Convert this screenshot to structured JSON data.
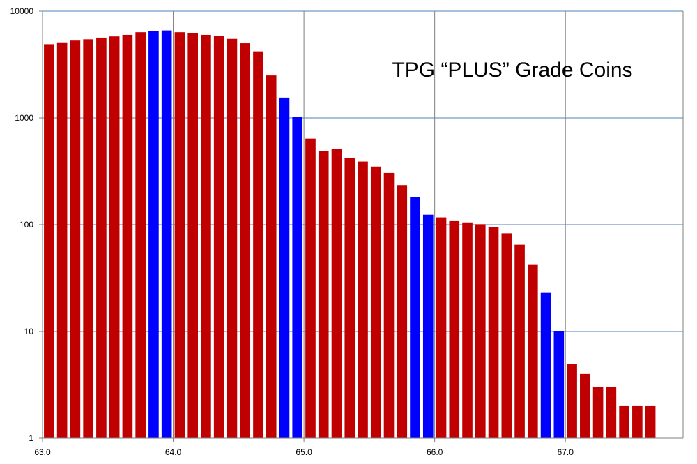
{
  "chart_data": {
    "type": "bar",
    "title": "TPG “PLUS”  Grade  Coins",
    "xlabel": "",
    "ylabel": "",
    "y_scale": "log",
    "ylim": [
      1,
      10000
    ],
    "xlim": [
      63.0,
      67.9
    ],
    "y_ticks": [
      1,
      10,
      100,
      1000,
      10000
    ],
    "y_tick_labels": [
      "1",
      "10",
      "100",
      "1000",
      "10000"
    ],
    "x_ticks": [
      63.0,
      64.0,
      65.0,
      66.0,
      67.0
    ],
    "x_tick_labels": [
      "63.0",
      "64.0",
      "65.0",
      "66.0",
      "67.0"
    ],
    "grid": true,
    "colors": {
      "regular": "#C00000",
      "highlight": "#0000FF",
      "grid": "#4F81BD",
      "axis": "#7F7F7F"
    },
    "bars": [
      {
        "x": 63.0,
        "value": 4900,
        "highlight": false
      },
      {
        "x": 63.1,
        "value": 5100,
        "highlight": false
      },
      {
        "x": 63.2,
        "value": 5300,
        "highlight": false
      },
      {
        "x": 63.3,
        "value": 5450,
        "highlight": false
      },
      {
        "x": 63.4,
        "value": 5650,
        "highlight": false
      },
      {
        "x": 63.5,
        "value": 5800,
        "highlight": false
      },
      {
        "x": 63.6,
        "value": 6000,
        "highlight": false
      },
      {
        "x": 63.7,
        "value": 6350,
        "highlight": false
      },
      {
        "x": 63.8,
        "value": 6500,
        "highlight": true
      },
      {
        "x": 63.9,
        "value": 6600,
        "highlight": true
      },
      {
        "x": 64.0,
        "value": 6350,
        "highlight": false
      },
      {
        "x": 64.1,
        "value": 6200,
        "highlight": false
      },
      {
        "x": 64.2,
        "value": 6000,
        "highlight": false
      },
      {
        "x": 64.3,
        "value": 5900,
        "highlight": false
      },
      {
        "x": 64.4,
        "value": 5500,
        "highlight": false
      },
      {
        "x": 64.5,
        "value": 5000,
        "highlight": false
      },
      {
        "x": 64.6,
        "value": 4200,
        "highlight": false
      },
      {
        "x": 64.7,
        "value": 2500,
        "highlight": false
      },
      {
        "x": 64.8,
        "value": 1550,
        "highlight": true
      },
      {
        "x": 64.9,
        "value": 1030,
        "highlight": true
      },
      {
        "x": 65.0,
        "value": 640,
        "highlight": false
      },
      {
        "x": 65.1,
        "value": 490,
        "highlight": false
      },
      {
        "x": 65.2,
        "value": 510,
        "highlight": false
      },
      {
        "x": 65.3,
        "value": 420,
        "highlight": false
      },
      {
        "x": 65.4,
        "value": 390,
        "highlight": false
      },
      {
        "x": 65.5,
        "value": 350,
        "highlight": false
      },
      {
        "x": 65.6,
        "value": 305,
        "highlight": false
      },
      {
        "x": 65.7,
        "value": 235,
        "highlight": false
      },
      {
        "x": 65.8,
        "value": 180,
        "highlight": true
      },
      {
        "x": 65.9,
        "value": 124,
        "highlight": true
      },
      {
        "x": 66.0,
        "value": 117,
        "highlight": false
      },
      {
        "x": 66.1,
        "value": 108,
        "highlight": false
      },
      {
        "x": 66.2,
        "value": 105,
        "highlight": false
      },
      {
        "x": 66.3,
        "value": 101,
        "highlight": false
      },
      {
        "x": 66.4,
        "value": 95,
        "highlight": false
      },
      {
        "x": 66.5,
        "value": 83,
        "highlight": false
      },
      {
        "x": 66.6,
        "value": 65,
        "highlight": false
      },
      {
        "x": 66.7,
        "value": 42,
        "highlight": false
      },
      {
        "x": 66.8,
        "value": 23,
        "highlight": true
      },
      {
        "x": 66.9,
        "value": 10,
        "highlight": true
      },
      {
        "x": 67.0,
        "value": 5,
        "highlight": false
      },
      {
        "x": 67.1,
        "value": 4,
        "highlight": false
      },
      {
        "x": 67.2,
        "value": 3,
        "highlight": false
      },
      {
        "x": 67.3,
        "value": 3,
        "highlight": false
      },
      {
        "x": 67.4,
        "value": 2,
        "highlight": false
      },
      {
        "x": 67.5,
        "value": 2,
        "highlight": false
      },
      {
        "x": 67.6,
        "value": 2,
        "highlight": false
      }
    ]
  }
}
